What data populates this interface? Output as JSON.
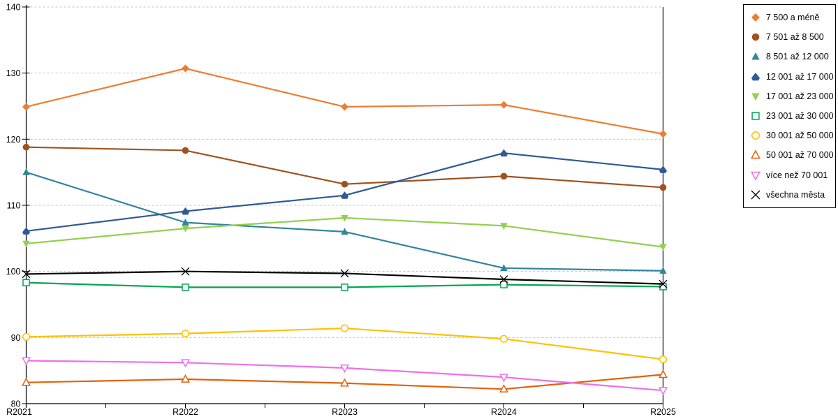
{
  "chart_data": {
    "type": "line",
    "title": "",
    "xlabel": "",
    "ylabel": "",
    "ylim": [
      80,
      140
    ],
    "ytick_step": 10,
    "grid": true,
    "legend_position": "right",
    "categories": [
      "R2021",
      "R2022",
      "R2023",
      "R2024",
      "R2025"
    ],
    "series": [
      {
        "name": "7 500 a méně",
        "marker": "diamond",
        "filled": true,
        "color": "#ED7D31",
        "values": [
          124.9,
          130.7,
          124.9,
          125.2,
          120.8
        ]
      },
      {
        "name": "7 501 až 8 500",
        "marker": "circle",
        "filled": true,
        "color": "#A0521E",
        "values": [
          118.8,
          118.3,
          113.2,
          114.4,
          112.7
        ]
      },
      {
        "name": "8 501 až 12 000",
        "marker": "triangle-up",
        "filled": true,
        "color": "#31859C",
        "values": [
          115.0,
          107.4,
          106.0,
          100.5,
          100.1
        ]
      },
      {
        "name": "12 001 až 17 000",
        "marker": "pentagon",
        "filled": true,
        "color": "#2F5B95",
        "values": [
          106.1,
          109.1,
          111.5,
          117.9,
          115.4
        ]
      },
      {
        "name": "17 001 až 23 000",
        "marker": "triangle-down",
        "filled": true,
        "color": "#92D050",
        "values": [
          104.2,
          106.5,
          108.1,
          106.9,
          103.7
        ]
      },
      {
        "name": "23 001 až 30 000",
        "marker": "square",
        "filled": false,
        "color": "#00A651",
        "values": [
          98.3,
          97.6,
          97.6,
          98.0,
          97.7
        ]
      },
      {
        "name": "30 001 až 50 000",
        "marker": "circle",
        "filled": false,
        "color": "#FFC000",
        "values": [
          90.1,
          90.6,
          91.4,
          89.8,
          86.7
        ]
      },
      {
        "name": "50 001 až 70 000",
        "marker": "triangle-up",
        "filled": false,
        "color": "#E2620D",
        "values": [
          83.2,
          83.7,
          83.1,
          82.2,
          84.4
        ]
      },
      {
        "name": "více než 70 001",
        "marker": "triangle-down",
        "filled": false,
        "color": "#F06EEB",
        "values": [
          86.5,
          86.2,
          85.4,
          84.0,
          82.0
        ]
      },
      {
        "name": "všechna města",
        "marker": "x",
        "filled": true,
        "color": "#000000",
        "values": [
          99.6,
          100.0,
          99.7,
          98.8,
          98.1
        ]
      }
    ]
  },
  "axis": {
    "y_tick_labels": [
      "140",
      "130",
      "120",
      "110",
      "100",
      "90",
      "80"
    ],
    "x_tick_labels": [
      "R2021",
      "R2022",
      "R2023",
      "R2024",
      "R2025"
    ]
  },
  "style_colors": {
    "gridline": "#C0C0C0",
    "axis": "#000000",
    "legend_border": "#000000"
  }
}
